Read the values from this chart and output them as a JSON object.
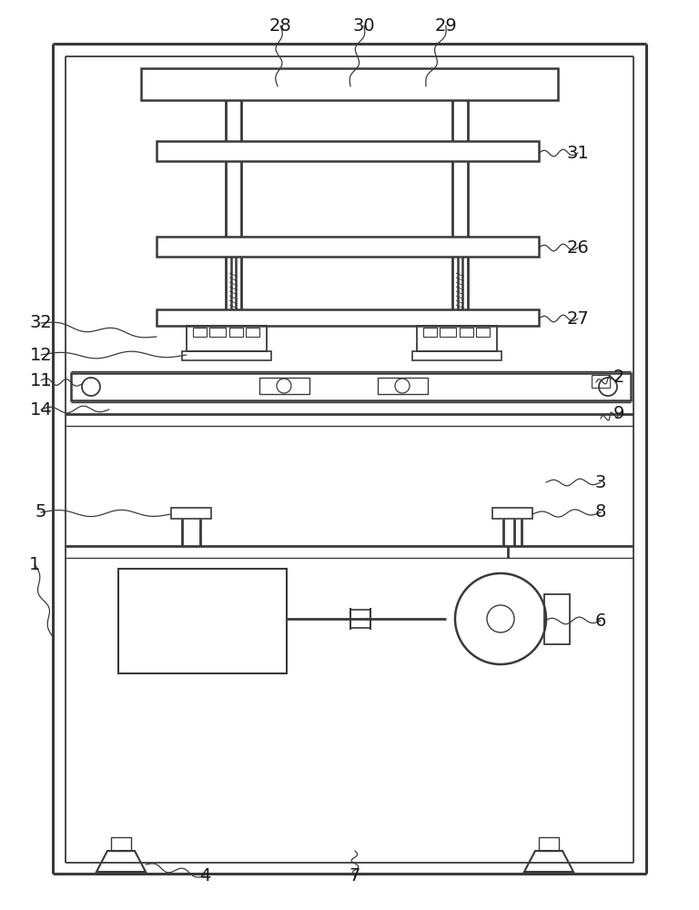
{
  "bg_color": "#ffffff",
  "lc": "#3a3a3a",
  "lw_outer": 2.2,
  "lw_main": 1.5,
  "lw_med": 1.0,
  "lw_thin": 0.7,
  "label_fs": 14,
  "label_color": "#1a1a1a"
}
